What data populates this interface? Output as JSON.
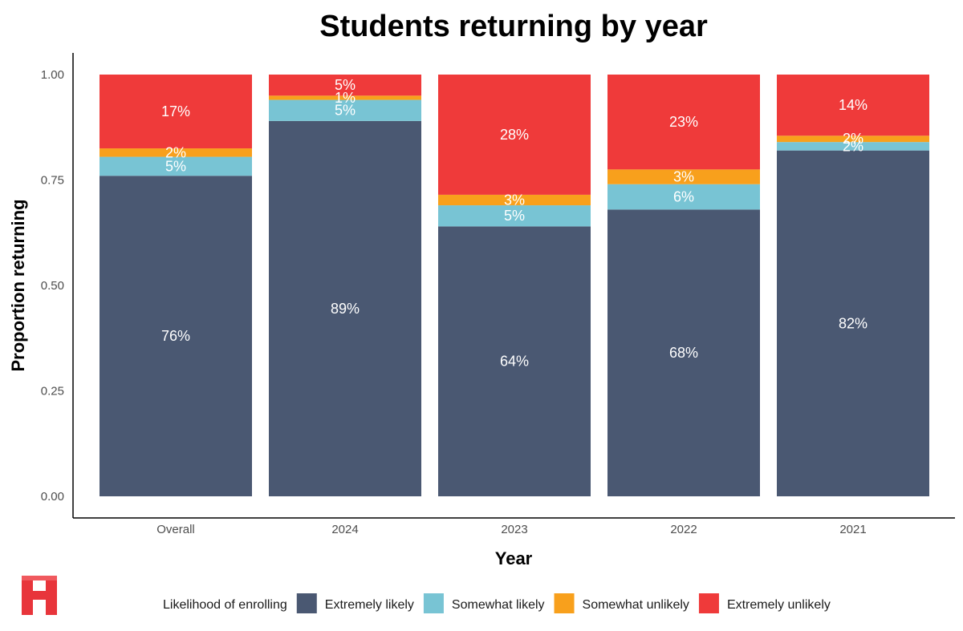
{
  "logo": {
    "letter": "H",
    "color": "#e8353b"
  },
  "colors": {
    "Extremely likely": "#4a5872",
    "Somewhat likely": "#78c4d4",
    "Somewhat unlikely": "#f8a01c",
    "Extremely unlikely": "#ef3a3a"
  },
  "chart_data": {
    "type": "bar",
    "stacked": true,
    "title": "Students returning by year",
    "xlabel": "Year",
    "ylabel": "Proportion returning",
    "ylim": [
      0,
      1
    ],
    "yticks": [
      "0.00",
      "0.25",
      "0.50",
      "0.75",
      "1.00"
    ],
    "yticks_values": [
      0,
      0.25,
      0.5,
      0.75,
      1.0
    ],
    "categories": [
      "Overall",
      "2024",
      "2023",
      "2022",
      "2021"
    ],
    "legend_title": "Likelihood of enrolling",
    "legend_position": "bottom",
    "grid": false,
    "series": [
      {
        "name": "Extremely likely",
        "values": [
          0.76,
          0.89,
          0.64,
          0.68,
          0.82
        ],
        "labels": [
          "76%",
          "89%",
          "64%",
          "68%",
          "82%"
        ]
      },
      {
        "name": "Somewhat likely",
        "values": [
          0.045,
          0.05,
          0.05,
          0.06,
          0.02
        ],
        "labels": [
          "5%",
          "5%",
          "5%",
          "6%",
          "2%"
        ]
      },
      {
        "name": "Somewhat unlikely",
        "values": [
          0.02,
          0.01,
          0.025,
          0.035,
          0.015
        ],
        "labels": [
          "2%",
          "1%",
          "3%",
          "3%",
          "2%"
        ]
      },
      {
        "name": "Extremely unlikely",
        "values": [
          0.175,
          0.05,
          0.285,
          0.225,
          0.145
        ],
        "labels": [
          "17%",
          "5%",
          "28%",
          "23%",
          "14%"
        ]
      }
    ]
  }
}
